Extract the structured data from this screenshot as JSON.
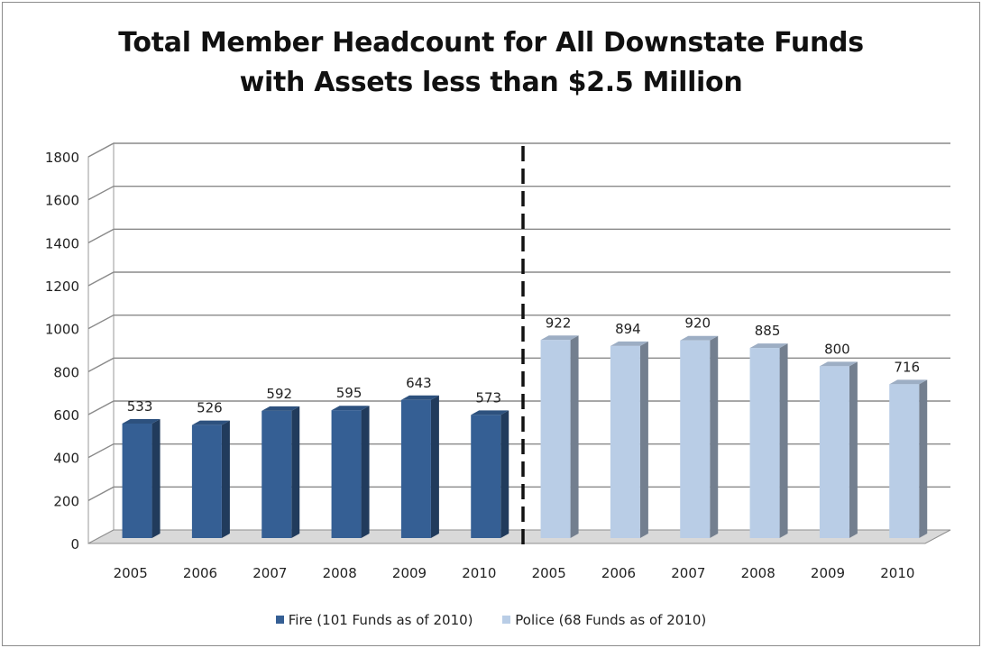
{
  "chart_data": {
    "type": "bar",
    "title_lines": [
      "Total Member Headcount for All Downstate Funds",
      "with Assets less than $2.5 Million"
    ],
    "ylim": [
      0,
      1800
    ],
    "yticks": [
      0,
      200,
      400,
      600,
      800,
      1000,
      1200,
      1400,
      1600,
      1800
    ],
    "grid": true,
    "legend_position": "bottom",
    "divider": "dashed vertical line between Fire and Police groups",
    "series": [
      {
        "name": "Fire (101 Funds as of 2010)",
        "color": "#355f94",
        "categories": [
          "2005",
          "2006",
          "2007",
          "2008",
          "2009",
          "2010"
        ],
        "values": [
          533,
          526,
          592,
          595,
          643,
          573
        ]
      },
      {
        "name": "Police (68 Funds as of 2010)",
        "color": "#b9cde6",
        "categories": [
          "2005",
          "2006",
          "2007",
          "2008",
          "2009",
          "2010"
        ],
        "values": [
          922,
          894,
          920,
          885,
          800,
          716
        ]
      }
    ]
  }
}
